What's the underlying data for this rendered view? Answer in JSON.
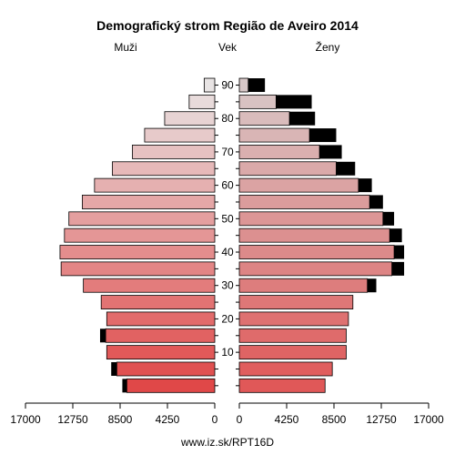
{
  "chart_data": {
    "type": "bar",
    "title": "Demografický strom Região de Aveiro 2014",
    "left_label": "Muži",
    "center_label": "Vek",
    "right_label": "Ženy",
    "footer": "www.iz.sk/RPT16D",
    "age_ticks": [
      "10",
      "20",
      "30",
      "40",
      "50",
      "60",
      "70",
      "80",
      "90"
    ],
    "x_ticks": [
      "17000",
      "12750",
      "8500",
      "4250",
      "0",
      "0",
      "4250",
      "8500",
      "12750",
      "17000"
    ],
    "xlim": [
      0,
      17000
    ],
    "groups": [
      "0-4",
      "5-9",
      "10-14",
      "15-19",
      "20-24",
      "25-29",
      "30-34",
      "35-39",
      "40-44",
      "45-49",
      "50-54",
      "55-59",
      "60-64",
      "65-69",
      "70-74",
      "75-79",
      "80-84",
      "85-89",
      "90+"
    ],
    "colors": {
      "male_fill": [
        "#e04848",
        "#e8e4e4"
      ],
      "female_fill": [
        "#e05858",
        "#d8c8c8"
      ],
      "excess": "#000000"
    },
    "series": [
      {
        "name": "Muži",
        "values": [
          7900,
          8800,
          9700,
          9800,
          9700,
          10200,
          11800,
          13800,
          13900,
          13500,
          13100,
          11900,
          10800,
          9200,
          7400,
          6300,
          4500,
          2300,
          950
        ],
        "excess": [
          400,
          500,
          0,
          500,
          0,
          0,
          0,
          0,
          0,
          0,
          0,
          0,
          0,
          0,
          0,
          0,
          0,
          0,
          0
        ]
      },
      {
        "name": "Ženy",
        "values": [
          7700,
          8350,
          9600,
          9600,
          9800,
          10200,
          12300,
          14800,
          14800,
          14600,
          13900,
          12900,
          11900,
          10400,
          9200,
          8700,
          6800,
          6500,
          2300
        ],
        "excess": [
          0,
          0,
          0,
          0,
          0,
          0,
          800,
          1100,
          900,
          1100,
          1000,
          1200,
          1200,
          1700,
          2000,
          2400,
          2300,
          3200,
          1500
        ]
      }
    ]
  }
}
